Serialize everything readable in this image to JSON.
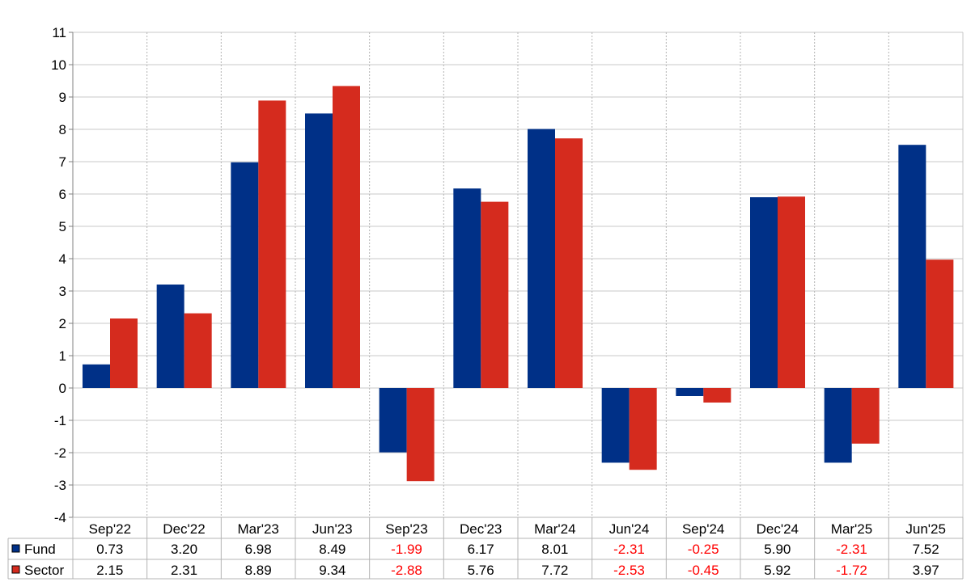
{
  "chart_data": {
    "type": "bar",
    "categories": [
      "Sep'22",
      "Dec'22",
      "Mar'23",
      "Jun'23",
      "Sep'23",
      "Dec'23",
      "Mar'24",
      "Jun'24",
      "Sep'24",
      "Dec'24",
      "Mar'25",
      "Jun'25"
    ],
    "series": [
      {
        "name": "Fund",
        "color": "#003087",
        "values": [
          0.73,
          3.2,
          6.98,
          8.49,
          -1.99,
          6.17,
          8.01,
          -2.31,
          -0.25,
          5.9,
          -2.31,
          7.52
        ],
        "labels": [
          "0.73",
          "3.20",
          "6.98",
          "8.49",
          "-1.99",
          "6.17",
          "8.01",
          "-2.31",
          "-0.25",
          "5.90",
          "-2.31",
          "7.52"
        ]
      },
      {
        "name": "Sector",
        "color": "#D52B1E",
        "values": [
          2.15,
          2.31,
          8.89,
          9.34,
          -2.88,
          5.76,
          7.72,
          -2.53,
          -0.45,
          5.92,
          -1.72,
          3.97
        ],
        "labels": [
          "2.15",
          "2.31",
          "8.89",
          "9.34",
          "-2.88",
          "5.76",
          "7.72",
          "-2.53",
          "-0.45",
          "5.92",
          "-1.72",
          "3.97"
        ]
      }
    ],
    "ylim": [
      -4,
      11
    ],
    "yticks": [
      11,
      10,
      9,
      8,
      7,
      6,
      5,
      4,
      3,
      2,
      1,
      0,
      -1,
      -2,
      -3,
      -4
    ],
    "grid": true,
    "legend": "data-table-left",
    "negative_value_color": "#FF0000",
    "title": "",
    "xlabel": "",
    "ylabel": ""
  }
}
